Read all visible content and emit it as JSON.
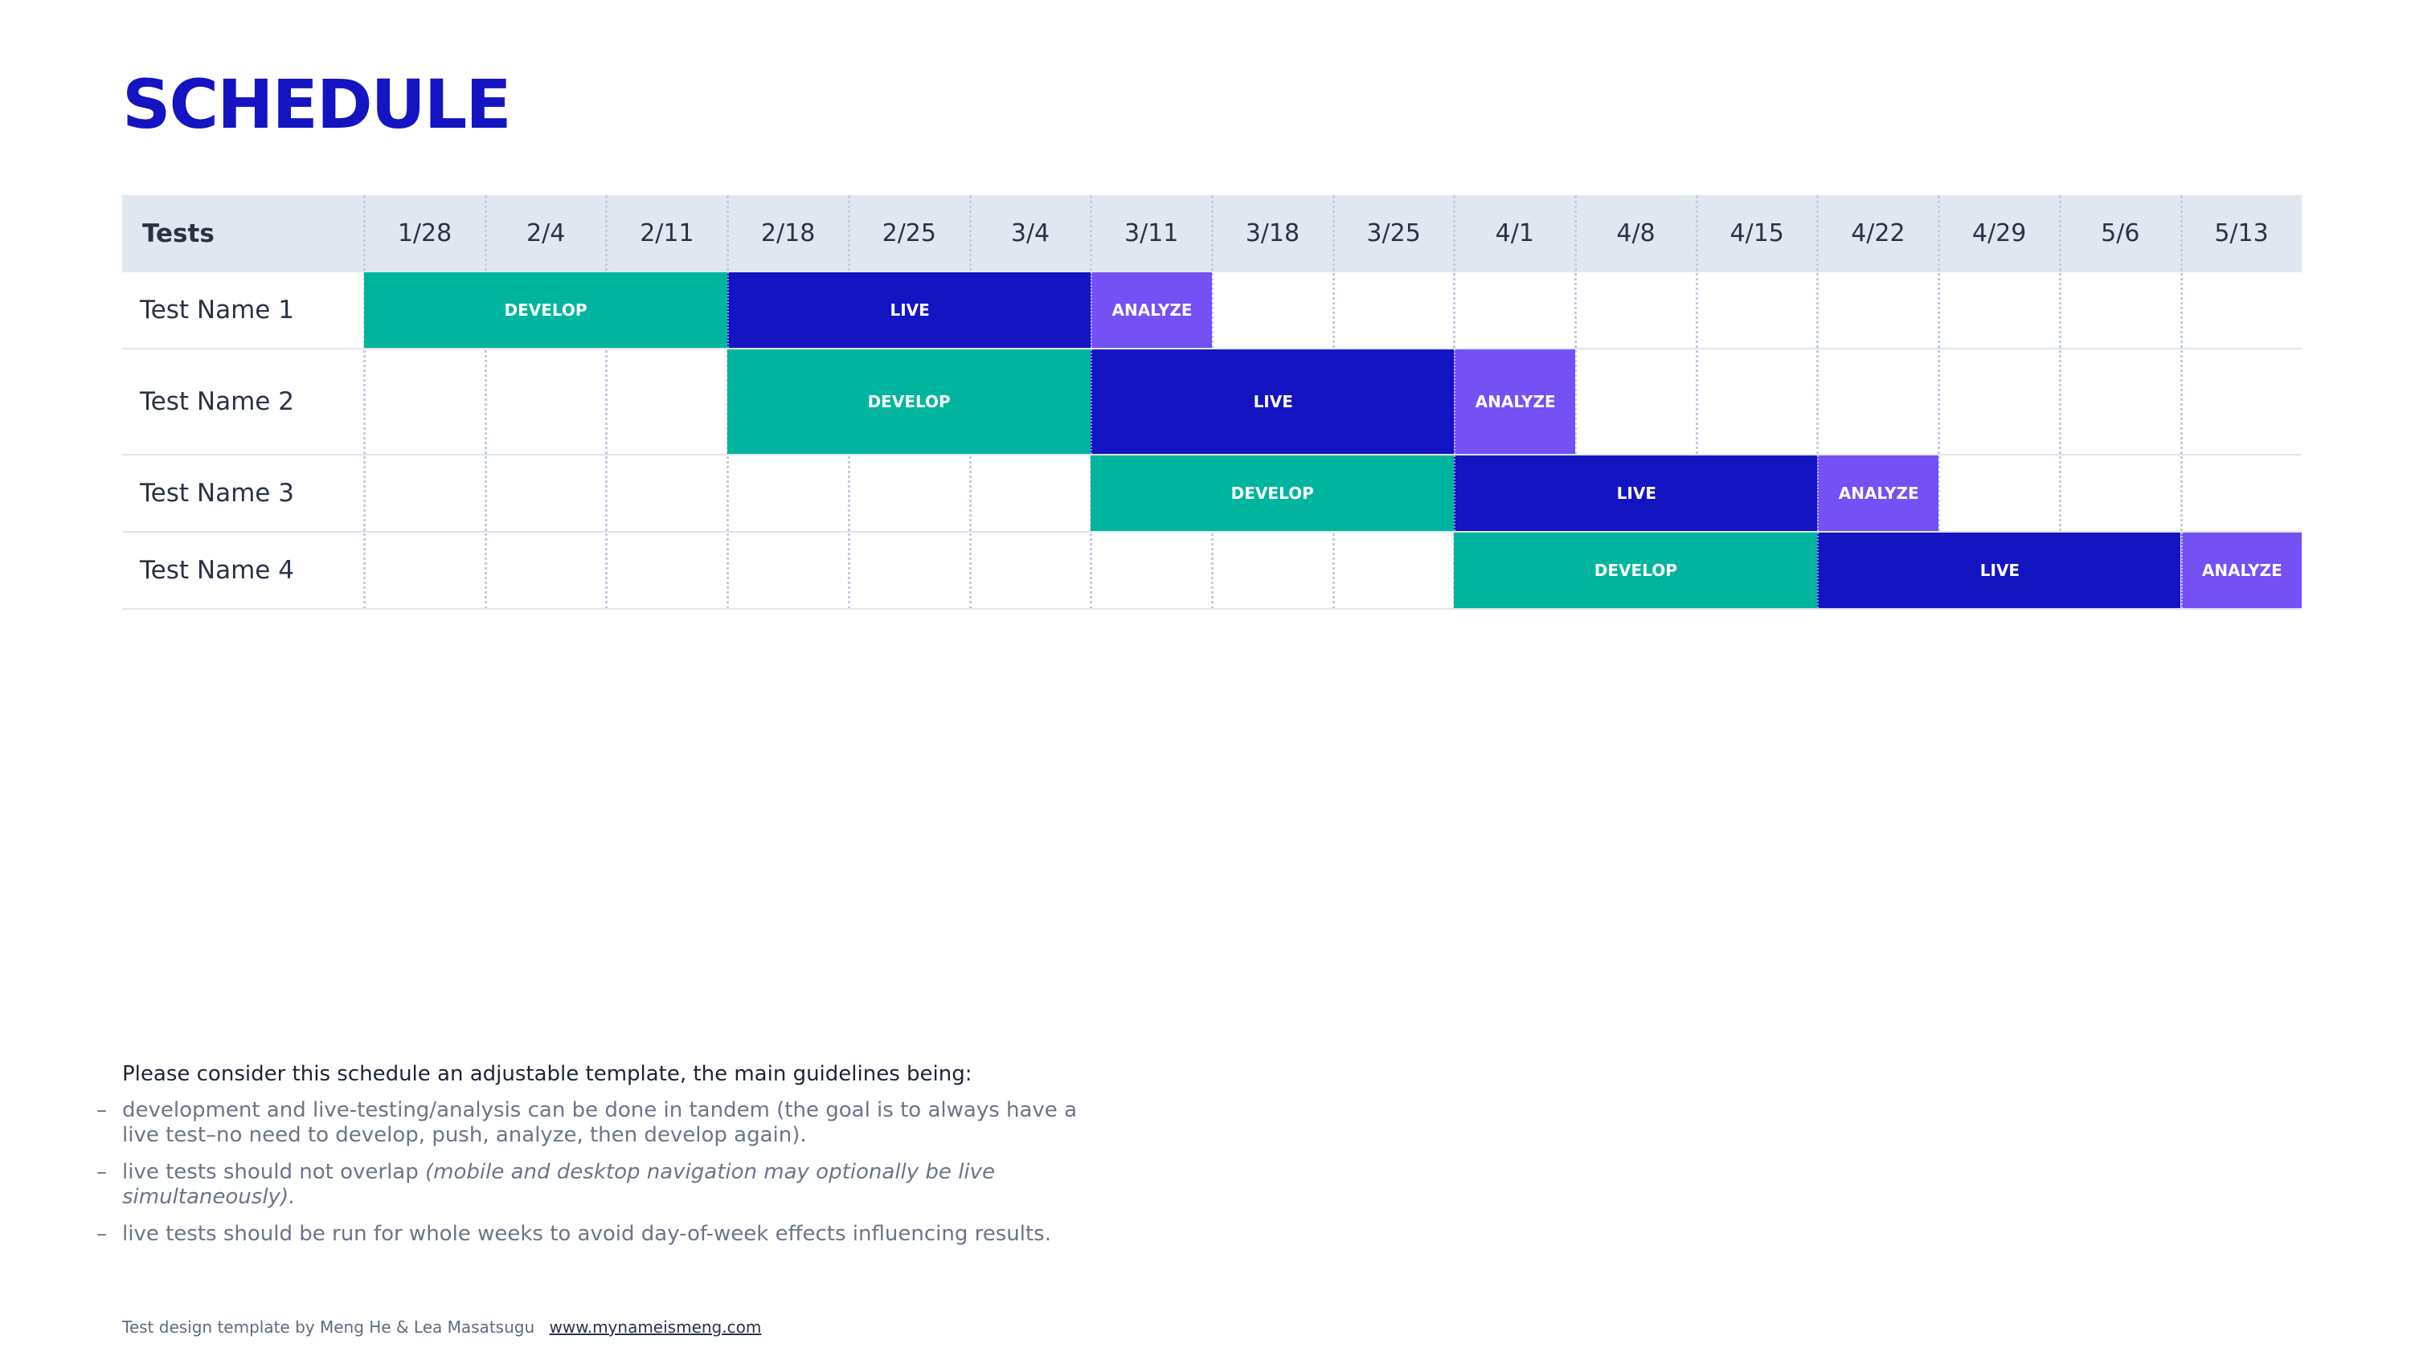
{
  "title": "SCHEDULE",
  "table": {
    "header_label": "Tests",
    "dates": [
      "1/28",
      "2/4",
      "2/11",
      "2/18",
      "2/25",
      "3/4",
      "3/11",
      "3/18",
      "3/25",
      "4/1",
      "4/8",
      "4/15",
      "4/22",
      "4/29",
      "5/6",
      "5/13"
    ],
    "rows": [
      {
        "name": "Test Name 1",
        "phases": [
          {
            "label": "DEVELOP",
            "type": "develop",
            "start": "1/28",
            "weeks": 3
          },
          {
            "label": "LIVE",
            "type": "live",
            "start": "2/18",
            "weeks": 3
          },
          {
            "label": "ANALYZE",
            "type": "analyze",
            "start": "3/11",
            "weeks": 1
          }
        ]
      },
      {
        "name": "Test Name 2",
        "phases": [
          {
            "label": "DEVELOP",
            "type": "develop",
            "start": "2/18",
            "weeks": 3
          },
          {
            "label": "LIVE",
            "type": "live",
            "start": "3/11",
            "weeks": 3
          },
          {
            "label": "ANALYZE",
            "type": "analyze",
            "start": "4/1",
            "weeks": 1
          }
        ]
      },
      {
        "name": "Test Name 3",
        "phases": [
          {
            "label": "DEVELOP",
            "type": "develop",
            "start": "3/11",
            "weeks": 3
          },
          {
            "label": "LIVE",
            "type": "live",
            "start": "4/1",
            "weeks": 3
          },
          {
            "label": "ANALYZE",
            "type": "analyze",
            "start": "4/22",
            "weeks": 1
          }
        ]
      },
      {
        "name": "Test Name 4",
        "phases": [
          {
            "label": "DEVELOP",
            "type": "develop",
            "start": "4/1",
            "weeks": 3
          },
          {
            "label": "LIVE",
            "type": "live",
            "start": "4/22",
            "weeks": 3
          },
          {
            "label": "ANALYZE",
            "type": "analyze",
            "start": "5/13",
            "weeks": 1
          }
        ]
      }
    ]
  },
  "notes": {
    "intro": "Please consider this schedule an adjustable template, the main guidelines being:",
    "bullet_dash": "–",
    "bullets": [
      {
        "text": "development and live-testing/analysis can be done in tandem (the goal is to always have a live test–no need to develop, push, analyze, then develop again).",
        "italic": ""
      },
      {
        "text": "live tests should not overlap ",
        "italic": "(mobile and desktop navigation may optionally be live simultaneously)."
      },
      {
        "text": "live tests should be run for whole weeks to avoid day-of-week effects influencing results.",
        "italic": ""
      }
    ]
  },
  "footer": {
    "credit": "Test design template by Meng He & Lea Masatsugu",
    "link": "www.mynameismeng.com"
  },
  "colors": {
    "title": "#1414c2",
    "develop": "#00b59d",
    "live": "#1414c2",
    "analyze": "#7450f5",
    "header_bg": "#e1e7f0"
  }
}
